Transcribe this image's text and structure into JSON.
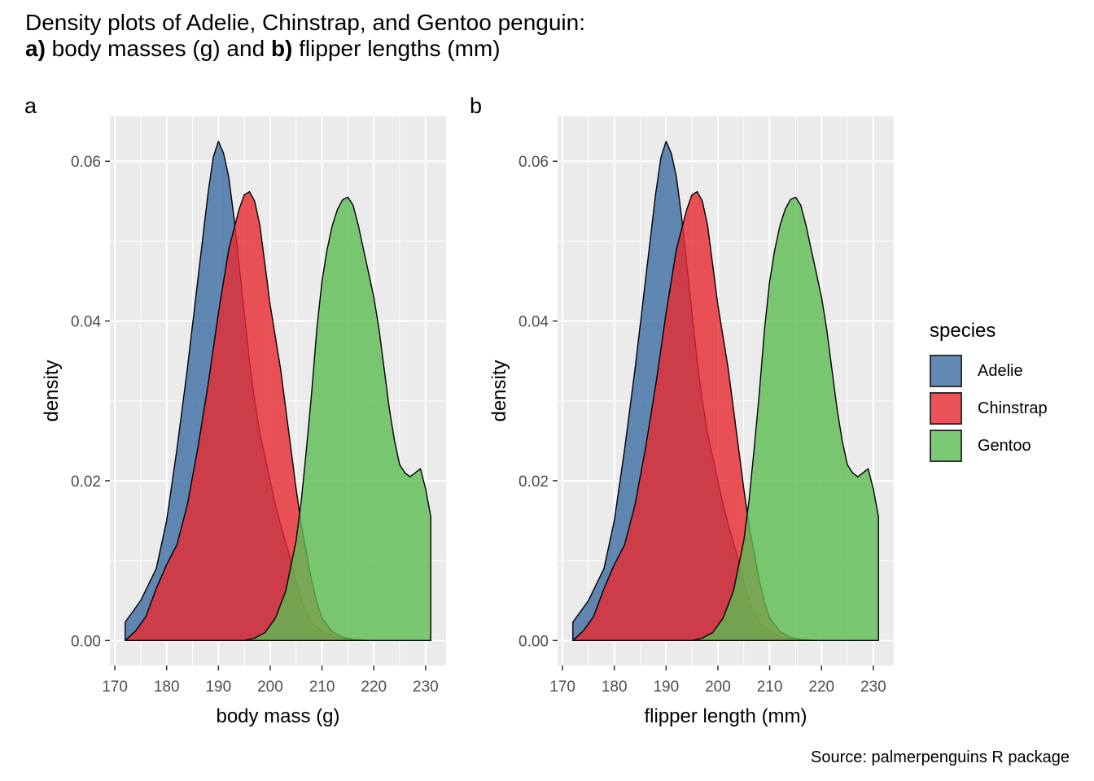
{
  "title": {
    "line1": "Density plots of Adelie, Chinstrap, and Gentoo penguin:",
    "line2_a": "a)",
    "line2_b": " body masses (g) and ",
    "line2_c": "b)",
    "line2_d": " flipper lengths (mm)"
  },
  "caption": "Source: palmerpenguins R package",
  "legend": {
    "title": "species",
    "items": [
      {
        "label": "Adelie",
        "color": "#3C6DA3"
      },
      {
        "label": "Chinstrap",
        "color": "#E8292F"
      },
      {
        "label": "Gentoo",
        "color": "#5CBD53"
      }
    ]
  },
  "chart_data": [
    {
      "tag": "a",
      "type": "area",
      "xlabel": "body mass (g)",
      "ylabel": "density",
      "xlim": [
        172,
        231
      ],
      "ylim": [
        0,
        0.0625
      ],
      "xticks": [
        170,
        180,
        190,
        200,
        210,
        220,
        230
      ],
      "yticks": [
        0.0,
        0.02,
        0.04,
        0.06
      ],
      "ytick_labels": [
        "0.00",
        "0.02",
        "0.04",
        "0.06"
      ],
      "grid": true,
      "legend_position": "right",
      "series": [
        {
          "name": "Adelie",
          "x": [
            172,
            175,
            178,
            180,
            182,
            184,
            186,
            188,
            189,
            190,
            191,
            192,
            193,
            194,
            195,
            196,
            197,
            198,
            199,
            200,
            201,
            202,
            204,
            206,
            208,
            210,
            212,
            214,
            216,
            218
          ],
          "y": [
            0.0023,
            0.005,
            0.009,
            0.015,
            0.024,
            0.034,
            0.045,
            0.056,
            0.0605,
            0.0625,
            0.061,
            0.058,
            0.053,
            0.047,
            0.041,
            0.035,
            0.03,
            0.026,
            0.023,
            0.02,
            0.017,
            0.0145,
            0.01,
            0.005,
            0.0022,
            0.0012,
            0.0005,
            0.0002,
            0.0001,
            0.0
          ]
        },
        {
          "name": "Chinstrap",
          "x": [
            172,
            174,
            176,
            178,
            180,
            182,
            184,
            186,
            188,
            190,
            192,
            194,
            195,
            196,
            197,
            198,
            199,
            200,
            201,
            202,
            203,
            204,
            205,
            206,
            207,
            208,
            209,
            210,
            212,
            214,
            216,
            218,
            220
          ],
          "y": [
            0.0,
            0.0012,
            0.003,
            0.0065,
            0.0095,
            0.012,
            0.017,
            0.024,
            0.032,
            0.041,
            0.049,
            0.054,
            0.0558,
            0.0562,
            0.055,
            0.052,
            0.047,
            0.042,
            0.038,
            0.034,
            0.029,
            0.024,
            0.019,
            0.0145,
            0.011,
            0.0075,
            0.0048,
            0.0028,
            0.0011,
            0.0004,
            0.00015,
            5e-05,
            0.0
          ]
        },
        {
          "name": "Gentoo",
          "x": [
            195,
            197,
            199,
            201,
            203,
            205,
            206,
            207,
            208,
            209,
            210,
            211,
            212,
            213,
            214,
            215,
            216,
            217,
            218,
            219,
            220,
            221,
            222,
            223,
            224,
            225,
            226,
            227,
            228,
            229,
            230,
            231
          ],
          "y": [
            0.0,
            0.0003,
            0.001,
            0.0028,
            0.0062,
            0.0125,
            0.0175,
            0.024,
            0.031,
            0.039,
            0.045,
            0.049,
            0.052,
            0.054,
            0.0552,
            0.0555,
            0.0545,
            0.052,
            0.049,
            0.046,
            0.043,
            0.039,
            0.034,
            0.029,
            0.025,
            0.022,
            0.021,
            0.0205,
            0.021,
            0.0215,
            0.019,
            0.0155
          ]
        }
      ]
    },
    {
      "tag": "b",
      "type": "area",
      "xlabel": "flipper length (mm)",
      "ylabel": "density",
      "xlim": [
        172,
        231
      ],
      "ylim": [
        0,
        0.0625
      ],
      "xticks": [
        170,
        180,
        190,
        200,
        210,
        220,
        230
      ],
      "yticks": [
        0.0,
        0.02,
        0.04,
        0.06
      ],
      "ytick_labels": [
        "0.00",
        "0.02",
        "0.04",
        "0.06"
      ],
      "grid": true,
      "legend_position": "right",
      "series": [
        {
          "name": "Adelie",
          "x": [
            172,
            175,
            178,
            180,
            182,
            184,
            186,
            188,
            189,
            190,
            191,
            192,
            193,
            194,
            195,
            196,
            197,
            198,
            199,
            200,
            201,
            202,
            204,
            206,
            208,
            210,
            212,
            214,
            216,
            218
          ],
          "y": [
            0.0023,
            0.005,
            0.009,
            0.015,
            0.024,
            0.034,
            0.045,
            0.056,
            0.0605,
            0.0625,
            0.061,
            0.058,
            0.053,
            0.047,
            0.041,
            0.035,
            0.03,
            0.026,
            0.023,
            0.02,
            0.017,
            0.0145,
            0.01,
            0.005,
            0.0022,
            0.0012,
            0.0005,
            0.0002,
            0.0001,
            0.0
          ]
        },
        {
          "name": "Chinstrap",
          "x": [
            172,
            174,
            176,
            178,
            180,
            182,
            184,
            186,
            188,
            190,
            192,
            194,
            195,
            196,
            197,
            198,
            199,
            200,
            201,
            202,
            203,
            204,
            205,
            206,
            207,
            208,
            209,
            210,
            212,
            214,
            216,
            218,
            220
          ],
          "y": [
            0.0,
            0.0012,
            0.003,
            0.0065,
            0.0095,
            0.012,
            0.017,
            0.024,
            0.032,
            0.041,
            0.049,
            0.054,
            0.0558,
            0.0562,
            0.055,
            0.052,
            0.047,
            0.042,
            0.038,
            0.034,
            0.029,
            0.024,
            0.019,
            0.0145,
            0.011,
            0.0075,
            0.0048,
            0.0028,
            0.0011,
            0.0004,
            0.00015,
            5e-05,
            0.0
          ]
        },
        {
          "name": "Gentoo",
          "x": [
            195,
            197,
            199,
            201,
            203,
            205,
            206,
            207,
            208,
            209,
            210,
            211,
            212,
            213,
            214,
            215,
            216,
            217,
            218,
            219,
            220,
            221,
            222,
            223,
            224,
            225,
            226,
            227,
            228,
            229,
            230,
            231
          ],
          "y": [
            0.0,
            0.0003,
            0.001,
            0.0028,
            0.0062,
            0.0125,
            0.0175,
            0.024,
            0.031,
            0.039,
            0.045,
            0.049,
            0.052,
            0.054,
            0.0552,
            0.0555,
            0.0545,
            0.052,
            0.049,
            0.046,
            0.043,
            0.039,
            0.034,
            0.029,
            0.025,
            0.022,
            0.021,
            0.0205,
            0.021,
            0.0215,
            0.019,
            0.0155
          ]
        }
      ]
    }
  ]
}
